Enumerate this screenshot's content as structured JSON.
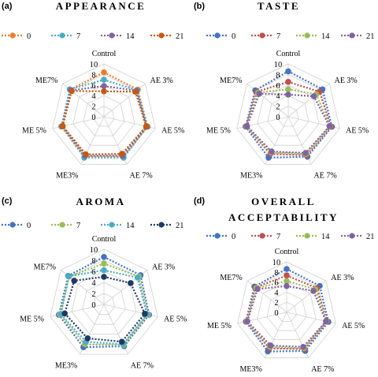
{
  "chart_data": [
    {
      "panel": "(a)",
      "type": "radar",
      "title": "APPEARANCE",
      "axes": [
        "Control",
        "AE 3%",
        "AE 5%",
        "AE 7%",
        "ME3%",
        "ME 5%",
        "ME7%"
      ],
      "rticks": [
        "0",
        "2",
        "4",
        "6",
        "8",
        "10"
      ],
      "rlim": [
        0,
        10
      ],
      "legend_position": "top",
      "series": [
        {
          "name": "0",
          "color": "#ED7D31",
          "values": [
            8.4,
            8.2,
            8.5,
            8.4,
            8.4,
            8.3,
            8.2
          ]
        },
        {
          "name": "7",
          "color": "#4BACC6",
          "values": [
            7.0,
            8.0,
            8.4,
            8.6,
            8.6,
            8.2,
            8.3
          ]
        },
        {
          "name": "14",
          "color": "#8064A2",
          "values": [
            5.8,
            7.9,
            8.3,
            8.2,
            8.2,
            8.1,
            8.0
          ]
        },
        {
          "name": "21",
          "color": "#C55A11",
          "values": [
            4.8,
            7.6,
            8.2,
            7.8,
            7.9,
            8.0,
            7.8
          ]
        }
      ]
    },
    {
      "panel": "(b)",
      "type": "radar",
      "title": "TASTE",
      "axes": [
        "Control",
        "AE 3%",
        "AE 5%",
        "AE 7%",
        "ME3%",
        "ME 5%",
        "ME7%"
      ],
      "rticks": [
        "0",
        "2",
        "4",
        "6",
        "8",
        "10"
      ],
      "rlim": [
        0,
        10
      ],
      "legend_position": "top",
      "series": [
        {
          "name": "0",
          "color": "#4472C4",
          "values": [
            8.6,
            8.3,
            8.5,
            8.4,
            8.6,
            8.3,
            8.0
          ]
        },
        {
          "name": "7",
          "color": "#C0504D",
          "values": [
            6.6,
            7.6,
            8.3,
            8.1,
            7.8,
            8.2,
            7.6
          ]
        },
        {
          "name": "14",
          "color": "#9BBB59",
          "values": [
            5.2,
            6.8,
            8.1,
            7.8,
            7.5,
            8.1,
            7.3
          ]
        },
        {
          "name": "21",
          "color": "#8064A2",
          "values": [
            4.2,
            6.2,
            8.0,
            7.6,
            7.3,
            8.0,
            7.0
          ]
        }
      ]
    },
    {
      "panel": "(c)",
      "type": "radar",
      "title": "AROMA",
      "axes": [
        "Control",
        "AE 3%",
        "AE 5%",
        "AE 7%",
        "ME3%",
        "ME 5%",
        "ME7%"
      ],
      "rticks": [
        "0",
        "2",
        "4",
        "6",
        "8",
        "10"
      ],
      "rlim": [
        0,
        10
      ],
      "legend_position": "top",
      "series": [
        {
          "name": "0",
          "color": "#4472C4",
          "values": [
            8.6,
            8.5,
            8.4,
            8.4,
            8.6,
            8.4,
            8.3
          ]
        },
        {
          "name": "7",
          "color": "#9BBB59",
          "values": [
            7.4,
            8.1,
            8.2,
            8.2,
            8.0,
            8.2,
            8.1
          ]
        },
        {
          "name": "14",
          "color": "#4BACC6",
          "values": [
            6.2,
            7.8,
            8.0,
            8.0,
            7.5,
            8.0,
            8.2
          ]
        },
        {
          "name": "21",
          "color": "#1F3864",
          "values": [
            5.0,
            6.2,
            7.6,
            7.5,
            6.8,
            7.3,
            6.9
          ]
        }
      ]
    },
    {
      "panel": "(d)",
      "type": "radar",
      "title": "OVERALL ACCEPTABILITY",
      "title_lines": [
        "OVERALL",
        "ACCEPTABILITY"
      ],
      "axes": [
        "Control",
        "AE 3%",
        "AE 5%",
        "AE 7%",
        "ME3%",
        "ME 5%",
        "ME7%"
      ],
      "rticks": [
        "0",
        "2",
        "4",
        "6",
        "8",
        "10"
      ],
      "rlim": [
        0,
        10
      ],
      "legend_position": "top",
      "series": [
        {
          "name": "0",
          "color": "#4472C4",
          "values": [
            8.6,
            8.4,
            8.5,
            8.5,
            8.6,
            8.3,
            8.2
          ]
        },
        {
          "name": "7",
          "color": "#C0504D",
          "values": [
            7.3,
            7.7,
            8.2,
            8.1,
            7.9,
            8.2,
            7.9
          ]
        },
        {
          "name": "14",
          "color": "#9BBB59",
          "values": [
            6.2,
            7.3,
            8.1,
            7.9,
            7.6,
            8.1,
            7.7
          ]
        },
        {
          "name": "21",
          "color": "#8064A2",
          "values": [
            5.2,
            6.8,
            8.0,
            7.6,
            7.3,
            8.0,
            7.4
          ]
        }
      ]
    }
  ]
}
